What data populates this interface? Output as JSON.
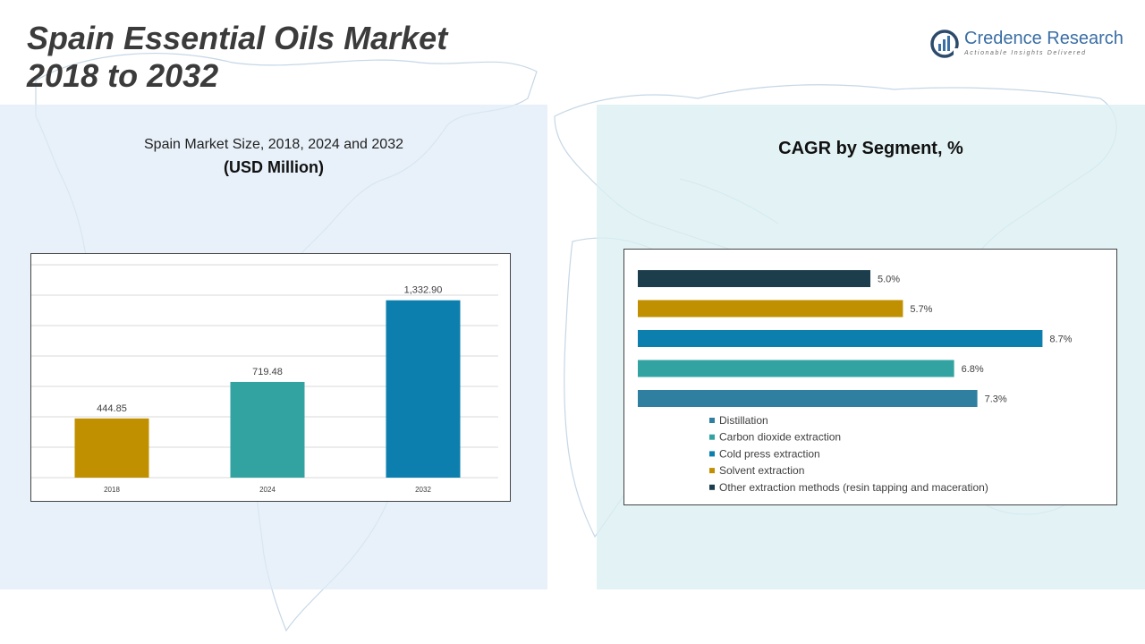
{
  "page": {
    "title_line1": "Spain Essential Oils Market",
    "title_line2": "2018 to 2032"
  },
  "logo": {
    "name": "Credence Research",
    "tagline": "Actionable Insights Delivered",
    "colors": {
      "dark": "#2d4a6b",
      "accent": "#3a6ea5"
    }
  },
  "left_panel": {
    "subtitle": "Spain Market Size, 2018, 2024 and 2032",
    "unit": "(USD Million)"
  },
  "right_panel": {
    "title": "CAGR by Segment, %"
  },
  "chart_data": [
    {
      "type": "bar",
      "title": "Spain Market Size, 2018, 2024 and 2032",
      "ylabel": "USD Million",
      "categories": [
        "2018",
        "2024",
        "2032"
      ],
      "values": [
        444.85,
        719.48,
        1332.9
      ],
      "labels": [
        "444.85",
        "719.48",
        "1,332.90"
      ],
      "colors": [
        "#c09000",
        "#33a3a2",
        "#0c7fae"
      ],
      "ylim": [
        0,
        1600
      ],
      "grid": true
    },
    {
      "type": "bar",
      "orientation": "horizontal",
      "title": "CAGR by Segment, %",
      "series": [
        {
          "name": "Other extraction methods (resin tapping and maceration)",
          "value": 5.0,
          "label": "5.0%",
          "color": "#1b3d4c"
        },
        {
          "name": "Solvent extraction",
          "value": 5.7,
          "label": "5.7%",
          "color": "#c09000"
        },
        {
          "name": "Cold press extraction",
          "value": 8.7,
          "label": "8.7%",
          "color": "#0c7fae"
        },
        {
          "name": "Carbon dioxide extraction",
          "value": 6.8,
          "label": "6.8%",
          "color": "#33a3a2"
        },
        {
          "name": "Distillation",
          "value": 7.3,
          "label": "7.3%",
          "color": "#2f7fa0"
        }
      ],
      "legend": [
        {
          "name": "Distillation",
          "color": "#2f7fa0"
        },
        {
          "name": "Carbon dioxide extraction",
          "color": "#33a3a2"
        },
        {
          "name": "Cold press extraction",
          "color": "#0c7fae"
        },
        {
          "name": "Solvent extraction",
          "color": "#c09000"
        },
        {
          "name": "Other extraction methods (resin tapping and maceration)",
          "color": "#1b3d4c"
        }
      ],
      "xlim": [
        0,
        10
      ],
      "legend_position": "bottom"
    }
  ]
}
